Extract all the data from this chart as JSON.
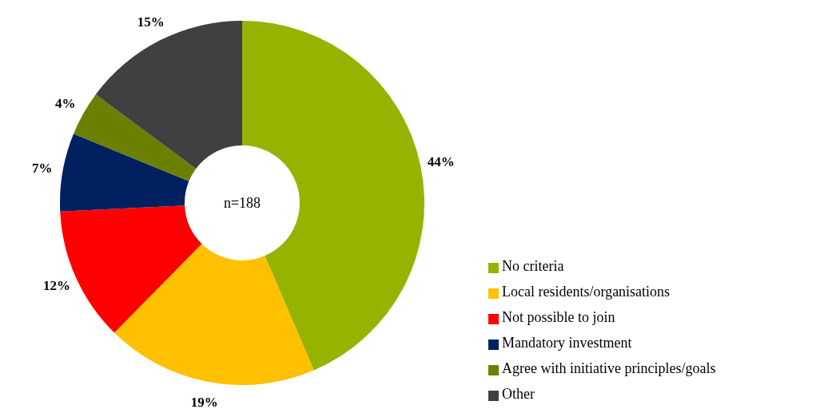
{
  "chart_data": {
    "type": "donut",
    "categories": [
      "No criteria",
      "Local residents/organisations",
      "Not possible to join",
      "Mandatory investment",
      "Agree with initiative principles/goals",
      "Other"
    ],
    "values": [
      44,
      19,
      12,
      7,
      4,
      15
    ],
    "colors": [
      "#95b300",
      "#ffc000",
      "#ff0000",
      "#002060",
      "#6b7f00",
      "#404040"
    ],
    "value_labels": [
      "44%",
      "19%",
      "12%",
      "7%",
      "4%",
      "15%"
    ],
    "annotations": [
      "n=188"
    ],
    "legend": "right"
  }
}
